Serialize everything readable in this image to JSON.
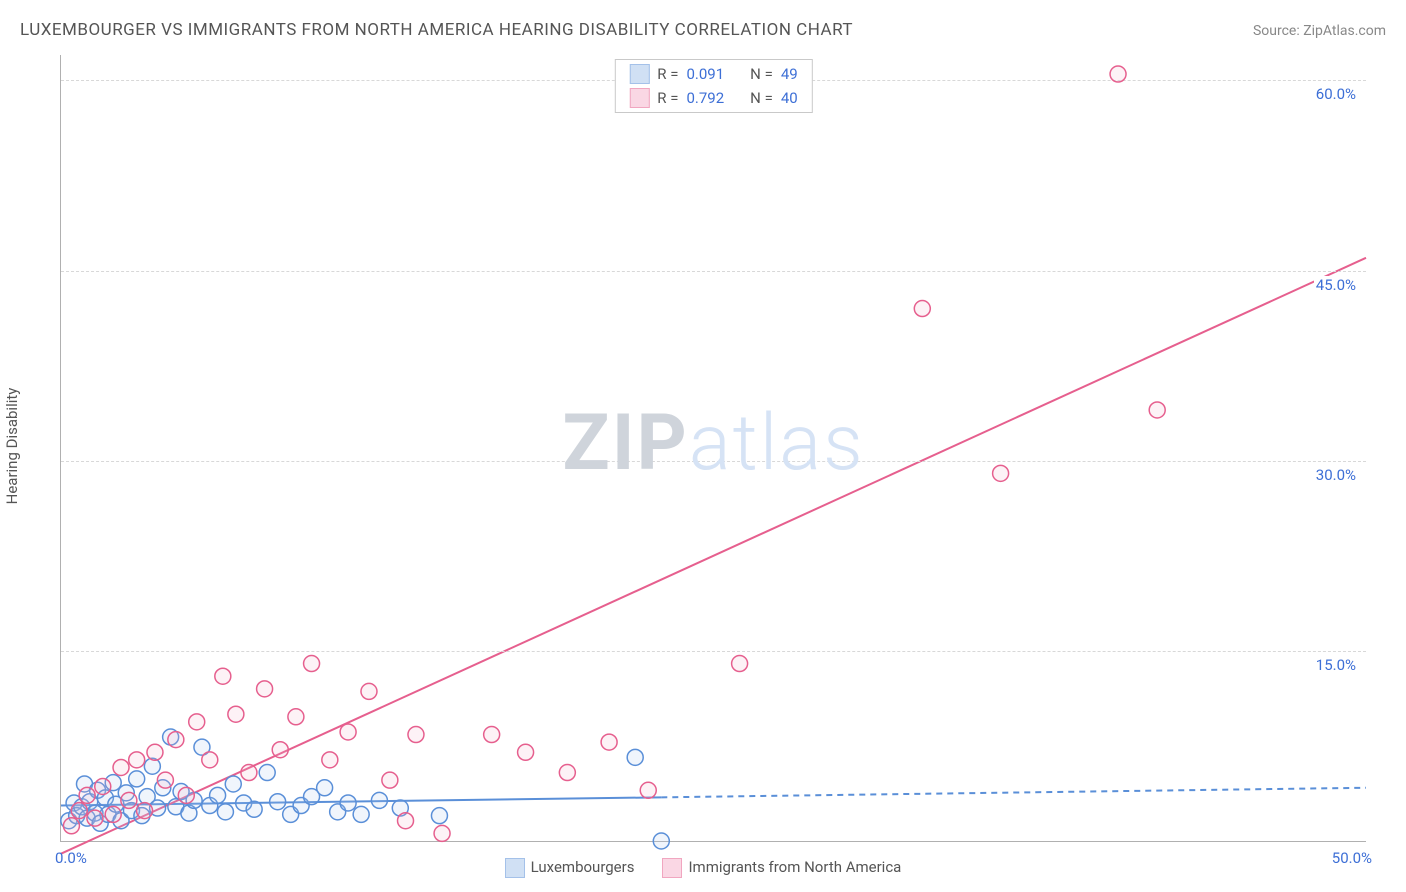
{
  "title": "LUXEMBOURGER VS IMMIGRANTS FROM NORTH AMERICA HEARING DISABILITY CORRELATION CHART",
  "source_label": "Source: ",
  "source_name": "ZipAtlas.com",
  "y_axis_label": "Hearing Disability",
  "watermark_a": "ZIP",
  "watermark_b": "atlas",
  "chart": {
    "type": "scatter",
    "background_color": "#ffffff",
    "grid_color": "#d8d8d8",
    "axis_color": "#b0b0b0",
    "tick_label_color": "#3d6fd6",
    "xlim": [
      0,
      50
    ],
    "ylim": [
      0,
      62
    ],
    "x_tick_labels": {
      "min": "0.0%",
      "max": "50.0%"
    },
    "y_ticks": [
      {
        "v": 15,
        "label": "15.0%"
      },
      {
        "v": 30,
        "label": "30.0%"
      },
      {
        "v": 45,
        "label": "45.0%"
      },
      {
        "v": 60,
        "label": "60.0%"
      }
    ],
    "marker_radius": 8,
    "marker_stroke_width": 1.5,
    "marker_fill_opacity": 0.18,
    "line_width": 2,
    "series": [
      {
        "id": "lux",
        "name": "Luxembourgers",
        "color_stroke": "#5a8fd8",
        "color_fill": "#aac7ec",
        "regression": {
          "x1": 0,
          "y1": 2.8,
          "x2": 50,
          "y2": 4.2,
          "solid_until_x": 23,
          "dashed": true
        },
        "points": [
          [
            0.3,
            1.6
          ],
          [
            0.5,
            3.0
          ],
          [
            0.6,
            2.0
          ],
          [
            0.8,
            2.7
          ],
          [
            0.9,
            4.5
          ],
          [
            1.0,
            1.8
          ],
          [
            1.1,
            3.1
          ],
          [
            1.3,
            2.2
          ],
          [
            1.4,
            4.0
          ],
          [
            1.5,
            1.4
          ],
          [
            1.7,
            3.4
          ],
          [
            1.8,
            2.1
          ],
          [
            2.0,
            4.6
          ],
          [
            2.1,
            2.9
          ],
          [
            2.3,
            1.6
          ],
          [
            2.5,
            3.8
          ],
          [
            2.7,
            2.4
          ],
          [
            2.9,
            4.9
          ],
          [
            3.1,
            2.0
          ],
          [
            3.3,
            3.5
          ],
          [
            3.5,
            5.9
          ],
          [
            3.7,
            2.6
          ],
          [
            3.9,
            4.2
          ],
          [
            4.2,
            8.2
          ],
          [
            4.4,
            2.7
          ],
          [
            4.6,
            3.9
          ],
          [
            4.9,
            2.2
          ],
          [
            5.1,
            3.2
          ],
          [
            5.4,
            7.4
          ],
          [
            5.7,
            2.8
          ],
          [
            6.0,
            3.6
          ],
          [
            6.3,
            2.3
          ],
          [
            6.6,
            4.5
          ],
          [
            7.0,
            3.0
          ],
          [
            7.4,
            2.5
          ],
          [
            7.9,
            5.4
          ],
          [
            8.3,
            3.1
          ],
          [
            8.8,
            2.1
          ],
          [
            9.2,
            2.8
          ],
          [
            9.6,
            3.5
          ],
          [
            10.1,
            4.2
          ],
          [
            10.6,
            2.3
          ],
          [
            11.0,
            3.0
          ],
          [
            11.5,
            2.1
          ],
          [
            12.2,
            3.2
          ],
          [
            13.0,
            2.6
          ],
          [
            14.5,
            2.0
          ],
          [
            22.0,
            6.6
          ],
          [
            23.0,
            0.0
          ]
        ]
      },
      {
        "id": "imm",
        "name": "Immigants from North America",
        "label_display": "Immigrants from North America",
        "color_stroke": "#e65f8e",
        "color_fill": "#f6b8ce",
        "regression": {
          "x1": 0,
          "y1": -1.0,
          "x2": 50,
          "y2": 46.0,
          "dashed": false
        },
        "points": [
          [
            0.4,
            1.2
          ],
          [
            0.7,
            2.4
          ],
          [
            1.0,
            3.6
          ],
          [
            1.3,
            1.8
          ],
          [
            1.6,
            4.3
          ],
          [
            2.0,
            2.1
          ],
          [
            2.3,
            5.8
          ],
          [
            2.6,
            3.2
          ],
          [
            2.9,
            6.4
          ],
          [
            3.2,
            2.4
          ],
          [
            3.6,
            7.0
          ],
          [
            4.0,
            4.8
          ],
          [
            4.4,
            8.0
          ],
          [
            4.8,
            3.6
          ],
          [
            5.2,
            9.4
          ],
          [
            5.7,
            6.4
          ],
          [
            6.2,
            13.0
          ],
          [
            6.7,
            10.0
          ],
          [
            7.2,
            5.4
          ],
          [
            7.8,
            12.0
          ],
          [
            8.4,
            7.2
          ],
          [
            9.0,
            9.8
          ],
          [
            9.6,
            14.0
          ],
          [
            10.3,
            6.4
          ],
          [
            11.0,
            8.6
          ],
          [
            11.8,
            11.8
          ],
          [
            12.6,
            4.8
          ],
          [
            13.2,
            1.6
          ],
          [
            13.6,
            8.4
          ],
          [
            14.6,
            0.6
          ],
          [
            16.5,
            8.4
          ],
          [
            17.8,
            7.0
          ],
          [
            19.4,
            5.4
          ],
          [
            21.0,
            7.8
          ],
          [
            22.5,
            4.0
          ],
          [
            26.0,
            14.0
          ],
          [
            33.0,
            42.0
          ],
          [
            36.0,
            29.0
          ],
          [
            40.5,
            60.5
          ],
          [
            42.0,
            34.0
          ]
        ]
      }
    ]
  },
  "stats_box": {
    "rows": [
      {
        "swatch_stroke": "#5a8fd8",
        "swatch_fill": "#aac7ec",
        "r_label": "R =",
        "r": "0.091",
        "n_label": "N =",
        "n": "49"
      },
      {
        "swatch_stroke": "#e65f8e",
        "swatch_fill": "#f6b8ce",
        "r_label": "R =",
        "r": "0.792",
        "n_label": "N =",
        "n": "40"
      }
    ]
  },
  "bottom_legend": [
    {
      "swatch_stroke": "#5a8fd8",
      "swatch_fill": "#aac7ec",
      "label": "Luxembourgers"
    },
    {
      "swatch_stroke": "#e65f8e",
      "swatch_fill": "#f6b8ce",
      "label": "Immigrants from North America"
    }
  ]
}
